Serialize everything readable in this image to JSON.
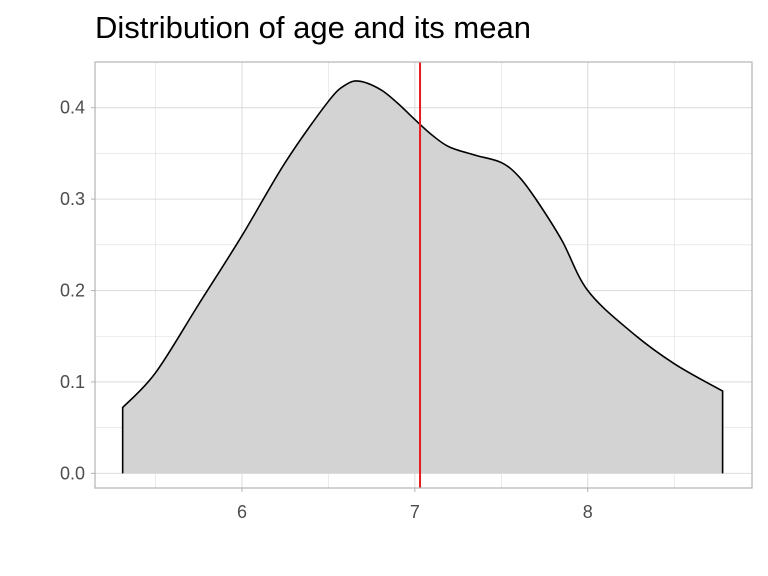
{
  "chart_data": {
    "type": "area",
    "title": "Distribution of age and its mean",
    "xlabel": "",
    "ylabel": "",
    "xlim": [
      5.15,
      8.95
    ],
    "ylim": [
      -0.016,
      0.45
    ],
    "x_ticks": [
      6,
      7,
      8
    ],
    "x_tick_labels": [
      "6",
      "7",
      "8"
    ],
    "y_ticks": [
      0.0,
      0.1,
      0.2,
      0.3,
      0.4
    ],
    "y_tick_labels": [
      "0.0",
      "0.1",
      "0.2",
      "0.3",
      "0.4"
    ],
    "x_minor_ticks": [
      5.5,
      6.5,
      7.5,
      8.5
    ],
    "y_minor_ticks": [
      0.05,
      0.15,
      0.25,
      0.35
    ],
    "grid": true,
    "legend": "none",
    "density": {
      "x": [
        5.31,
        5.5,
        5.75,
        6.0,
        6.25,
        6.5,
        6.6,
        6.68,
        6.8,
        6.9,
        7.0,
        7.1,
        7.2,
        7.35,
        7.5,
        7.6,
        7.7,
        7.85,
        8.0,
        8.25,
        8.5,
        8.78
      ],
      "y": [
        0.072,
        0.11,
        0.185,
        0.26,
        0.34,
        0.407,
        0.425,
        0.429,
        0.42,
        0.405,
        0.387,
        0.37,
        0.357,
        0.348,
        0.34,
        0.325,
        0.3,
        0.255,
        0.2,
        0.155,
        0.12,
        0.09
      ]
    },
    "mean_line": {
      "x": 7.03
    },
    "colors": {
      "fill": "#d3d3d3",
      "curve": "#000000",
      "mean_line": "#e41a1c",
      "grid": "#dedede",
      "panel_border": "#b3b3b3",
      "tick_text": "#4d4d4d"
    }
  }
}
